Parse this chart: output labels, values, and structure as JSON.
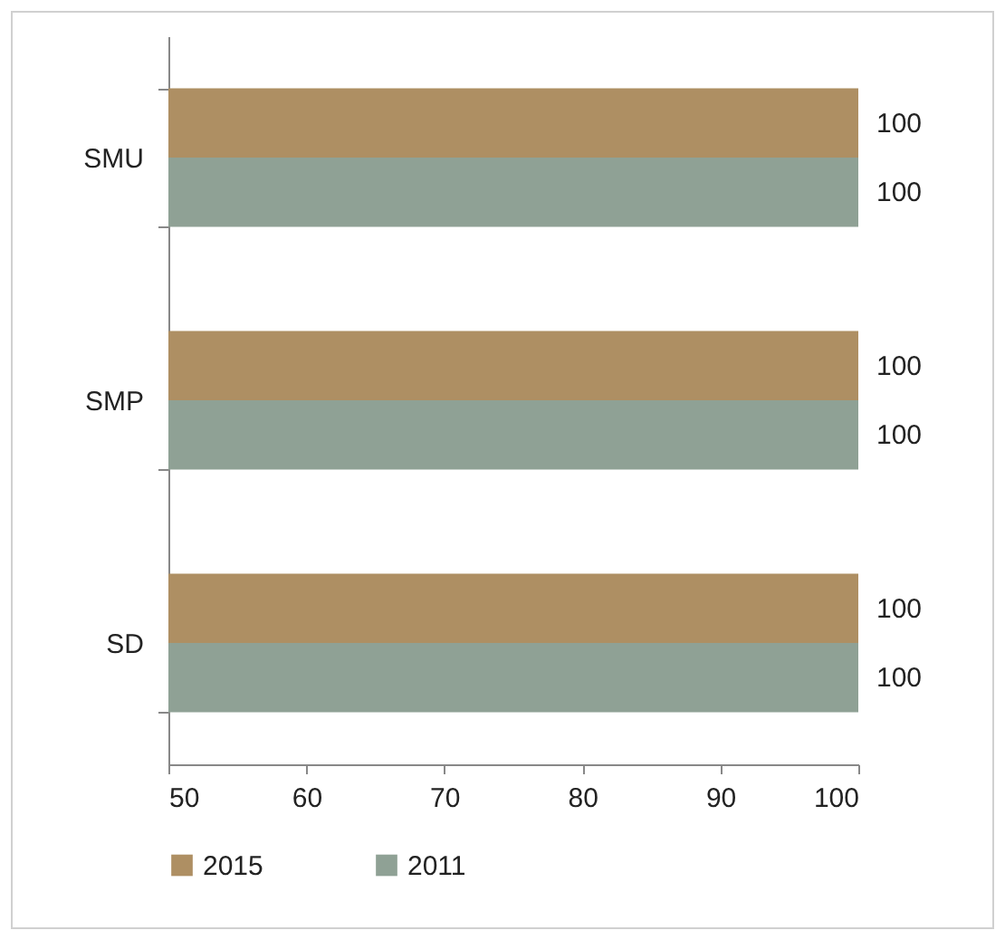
{
  "chart_data": {
    "type": "bar",
    "orientation": "horizontal",
    "categories": [
      "SMU",
      "SMP",
      "SD"
    ],
    "series": [
      {
        "name": "2015",
        "color": "#ae8f63",
        "values": [
          100,
          100,
          100
        ]
      },
      {
        "name": "2011",
        "color": "#8fa195",
        "values": [
          100,
          100,
          100
        ]
      }
    ],
    "xlim": [
      50,
      100
    ],
    "xticks": [
      50,
      60,
      70,
      80,
      90,
      100
    ],
    "grid": false,
    "legend": "bottom",
    "data_labels": true
  }
}
